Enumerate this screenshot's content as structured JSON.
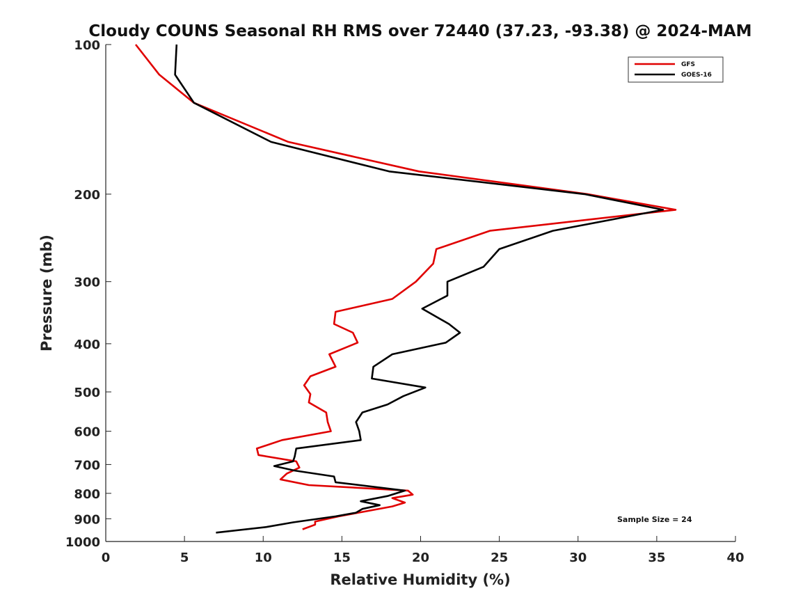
{
  "chart_data": {
    "type": "line",
    "title": "Cloudy COUNS Seasonal RH RMS over 72440 (37.23, -93.38) @ 2024-MAM",
    "xlabel": "Relative Humidity (%)",
    "ylabel": "Pressure (mb)",
    "xlim": [
      0,
      40
    ],
    "ylim": [
      100,
      1000
    ],
    "yscale": "log",
    "y_reversed": true,
    "xticks": [
      0,
      5,
      10,
      15,
      20,
      25,
      30,
      35,
      40
    ],
    "yticks": [
      100,
      200,
      300,
      400,
      500,
      600,
      700,
      800,
      900,
      1000
    ],
    "legend_position": "top-right",
    "annotation": "Sample Size = 24",
    "series": [
      {
        "name": "GFS",
        "color": "#e00000",
        "x": [
          1.9,
          3.4,
          5.6,
          11.6,
          19.9,
          30.6,
          36.2,
          24.4,
          21.0,
          20.8,
          19.7,
          18.2,
          14.6,
          14.5,
          15.7,
          16.0,
          14.2,
          14.6,
          13.0,
          12.6,
          13.0,
          12.9,
          14.0,
          14.1,
          14.3,
          11.2,
          9.6,
          9.7,
          12.1,
          12.3,
          11.5,
          11.1,
          12.9,
          19.2,
          19.5,
          18.2,
          19.0,
          18.2,
          14.8,
          13.3,
          13.3,
          12.5
        ],
        "y": [
          100,
          115,
          131,
          157,
          180,
          200,
          215,
          237,
          258,
          276,
          300,
          325,
          345,
          365,
          380,
          398,
          420,
          445,
          465,
          485,
          505,
          525,
          550,
          575,
          600,
          625,
          650,
          670,
          690,
          710,
          730,
          750,
          770,
          790,
          805,
          818,
          835,
          850,
          890,
          912,
          925,
          945
        ]
      },
      {
        "name": "GOES-16",
        "color": "#000000",
        "x": [
          4.5,
          4.4,
          5.6,
          10.5,
          18.0,
          30.4,
          35.4,
          28.4,
          25.0,
          24.0,
          21.7,
          21.7,
          20.1,
          21.8,
          22.5,
          21.6,
          18.2,
          17.0,
          16.9,
          20.3,
          18.9,
          17.9,
          16.3,
          15.9,
          16.1,
          16.2,
          12.1,
          12.0,
          11.9,
          10.7,
          12.0,
          14.5,
          14.6,
          19.0,
          17.9,
          16.2,
          17.4,
          16.3,
          15.9,
          14.6,
          11.9,
          10.2,
          7.0
        ],
        "y": [
          100,
          115,
          131,
          157,
          180,
          200,
          215,
          237,
          258,
          280,
          300,
          320,
          340,
          365,
          380,
          398,
          420,
          445,
          470,
          490,
          510,
          530,
          550,
          575,
          600,
          625,
          650,
          675,
          690,
          705,
          720,
          740,
          760,
          790,
          810,
          830,
          845,
          860,
          875,
          890,
          915,
          935,
          960
        ]
      }
    ]
  }
}
